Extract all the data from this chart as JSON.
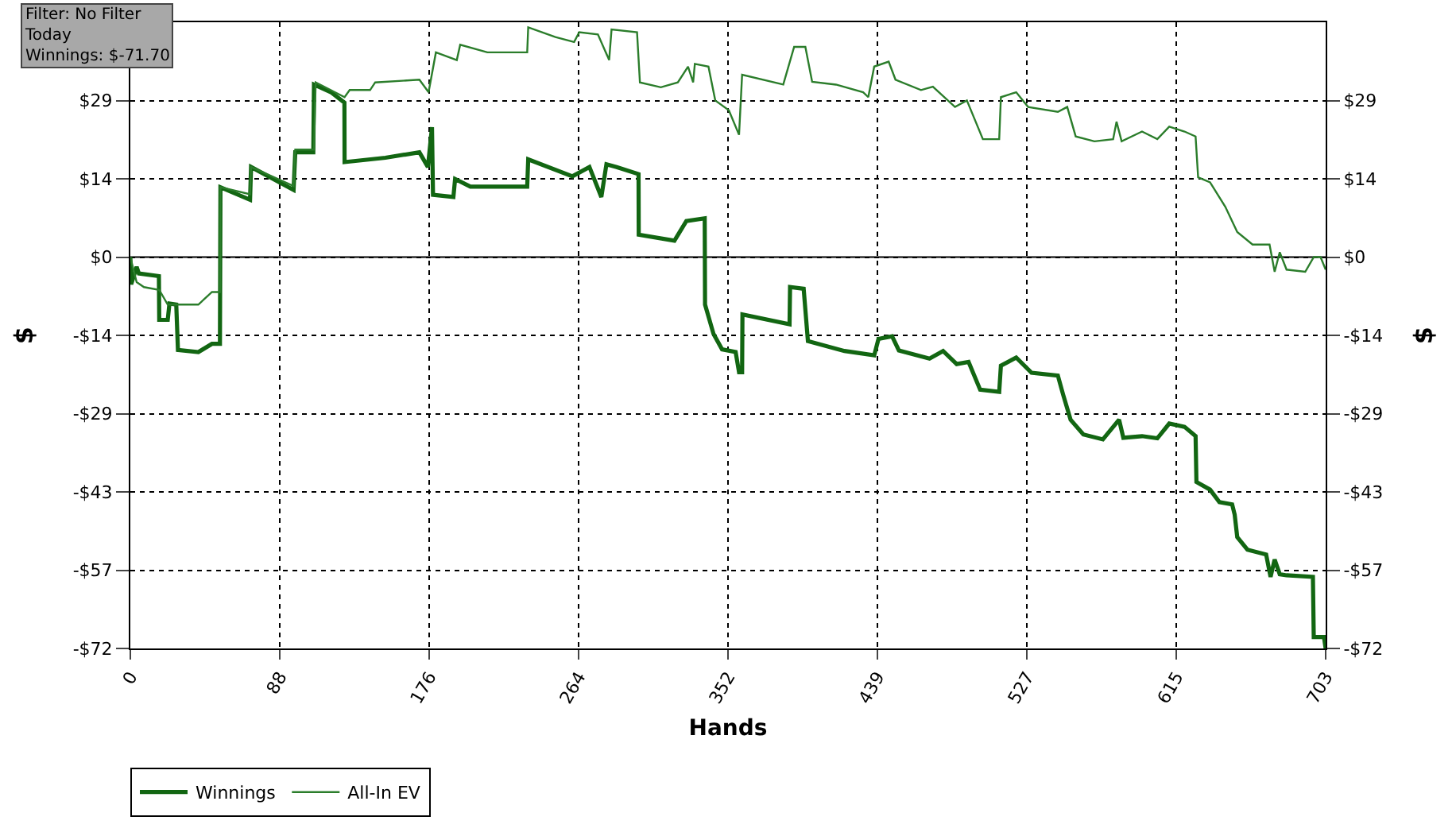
{
  "chart_data": {
    "type": "line",
    "annotations": [
      "Filter: No Filter",
      "Today",
      "Winnings: $-71.70"
    ],
    "xlabel": "Hands",
    "ylabel": "$",
    "y2label": "$",
    "xlim": [
      0,
      703
    ],
    "xticks": [
      0,
      {
        "value": 87.875,
        "label": "88"
      },
      {
        "value": 175.75,
        "label": "176"
      },
      {
        "value": 263.625,
        "label": "264"
      },
      {
        "value": 351.5,
        "label": "352"
      },
      {
        "value": 439.375,
        "label": "439"
      },
      {
        "value": 527.25,
        "label": "527"
      },
      {
        "value": 615.125,
        "label": "615"
      },
      703
    ],
    "ylim": [
      -71.7,
      43.02
    ],
    "yticks": [
      {
        "value": -71.7,
        "label": "-$72"
      },
      {
        "value": -57.36,
        "label": "-$57"
      },
      {
        "value": -43.02,
        "label": "-$43"
      },
      {
        "value": -28.68,
        "label": "-$29"
      },
      {
        "value": -14.34,
        "label": "-$14"
      },
      {
        "value": 0,
        "label": "$0"
      },
      {
        "value": 14.34,
        "label": "$14"
      },
      {
        "value": 28.68,
        "label": "$29"
      }
    ],
    "y2lim": [
      -71.7,
      43.02
    ],
    "y2ticks": [
      {
        "value": -71.7,
        "label": "-$72"
      },
      {
        "value": -57.36,
        "label": "-$57"
      },
      {
        "value": -43.02,
        "label": "-$43"
      },
      {
        "value": -28.68,
        "label": "-$29"
      },
      {
        "value": -14.34,
        "label": "-$14"
      },
      {
        "value": 0,
        "label": "$0"
      },
      {
        "value": 14.34,
        "label": "$14"
      },
      {
        "value": 28.68,
        "label": "$29"
      }
    ],
    "grid": true,
    "legend": "bottom left",
    "line_style": "solid",
    "marker": "none",
    "ref_lines": [
      {
        "axis": "y",
        "value": 0,
        "color": "#000000"
      }
    ],
    "series": [
      {
        "name": "Winnings",
        "color": "#126612",
        "x": [
          0,
          0.5,
          3.7,
          5,
          16.8,
          17,
          22,
          23,
          27,
          28,
          40,
          48,
          52.7,
          53,
          70.4,
          71,
          96,
          97,
          107.6,
          108,
          118,
          125.9,
          126,
          150,
          170,
          175,
          177.4,
          178,
          190,
          191,
          200,
          233.4,
          234,
          260,
          270,
          277,
          280,
          286,
          298.9,
          299,
          320,
          327,
          337.8,
          338,
          343,
          348,
          356,
          358,
          359.8,
          360,
          387.7,
          388,
          396,
          398.5,
          420,
          437.5,
          440,
          448,
          452,
          470,
          478,
          486,
          493,
          499.8,
          511,
          512,
          521,
          530,
          545.5,
          548.6,
          553,
          560.5,
          572,
          581.5,
          584,
          595,
          604,
          611,
          620,
          626.5,
          627,
          635,
          640.5,
          648,
          649.5,
          651,
          657,
          668,
          670.6,
          673,
          676,
          680,
          695.5,
          696,
          702,
          703
        ],
        "values": [
          0,
          -5,
          -1.8,
          -3,
          -3.5,
          -11.5,
          -11.5,
          -8.5,
          -8.7,
          -17,
          -17.4,
          -15.9,
          -15.9,
          12.8,
          10.5,
          16.5,
          12.3,
          19.2,
          19.2,
          31.6,
          30.2,
          28.3,
          17.4,
          18.2,
          19.2,
          16.5,
          23.8,
          11.4,
          11,
          14.3,
          12.9,
          12.9,
          17.9,
          14.8,
          16.5,
          11,
          17,
          16.5,
          15.2,
          4.1,
          3,
          6.6,
          7.1,
          -8.7,
          -14.1,
          -16.9,
          -17.4,
          -21.1,
          -21.1,
          -10.5,
          -12.3,
          -5.5,
          -5.8,
          -15.4,
          -17.2,
          -18,
          -15,
          -14.5,
          -17.1,
          -18.6,
          -17.2,
          -19.6,
          -19.2,
          -24.3,
          -24.7,
          -19.9,
          -18.4,
          -21.2,
          -21.7,
          -25.2,
          -29.8,
          -32.5,
          -33.4,
          -29.8,
          -33.1,
          -32.8,
          -33.2,
          -30.5,
          -31.1,
          -32.8,
          -41.2,
          -42.6,
          -44.9,
          -45.3,
          -47.2,
          -51.3,
          -53.6,
          -54.5,
          -58.6,
          -55.4,
          -58.1,
          -58.3,
          -58.6,
          -69.6,
          -69.6,
          -71.7
        ]
      },
      {
        "name": "All-In EV",
        "color": "#2b7d2b",
        "x": [
          0,
          3.7,
          8,
          17,
          22,
          23,
          40,
          48,
          52.7,
          53,
          70.4,
          71,
          96,
          97,
          108,
          109,
          126,
          129,
          141,
          144,
          170,
          175.4,
          179.7,
          192,
          194,
          210,
          233.4,
          234,
          250,
          261,
          264,
          275,
          281.6,
          283,
          298,
          299.7,
          312,
          322,
          328,
          331,
          332,
          340,
          344,
          352,
          358,
          359.8,
          384,
          390.4,
          397,
          401,
          415,
          431,
          434,
          437.5,
          446,
          450,
          465,
          472,
          485,
          492,
          501.4,
          511,
          512,
          521,
          528,
          545.5,
          551,
          556,
          567,
          578,
          580,
          583,
          595,
          604,
          611,
          620,
          626.5,
          628,
          635,
          644,
          651,
          660,
          670,
          673,
          676,
          680,
          691,
          696,
          700,
          703
        ],
        "values": [
          0,
          -4.6,
          -5.5,
          -6,
          -8.7,
          -8.7,
          -8.7,
          -6.4,
          -6.4,
          12.8,
          11.5,
          16.5,
          13,
          19.7,
          19.7,
          32,
          29.3,
          30.6,
          30.6,
          32,
          32.5,
          30.2,
          37.5,
          36.1,
          38.9,
          37.5,
          37.5,
          42.1,
          40.3,
          39.4,
          41.2,
          40.8,
          36.1,
          41.7,
          41.2,
          32,
          31.1,
          32,
          34.9,
          32,
          35.4,
          34.9,
          28.7,
          26.9,
          22.4,
          33.4,
          31.6,
          38.5,
          38.5,
          32.1,
          31.6,
          30.2,
          29.3,
          34.9,
          35.8,
          32.5,
          30.6,
          31.2,
          27.5,
          28.7,
          21.6,
          21.6,
          29.3,
          30.2,
          27.5,
          26.6,
          27.5,
          22.1,
          21.2,
          21.6,
          24.8,
          21.2,
          23,
          21.6,
          23.9,
          23,
          22.1,
          14.6,
          13.7,
          9.2,
          4.6,
          2.3,
          2.3,
          -2.7,
          0.9,
          -2.3,
          -2.7,
          0,
          0,
          -2.3
        ]
      }
    ]
  }
}
